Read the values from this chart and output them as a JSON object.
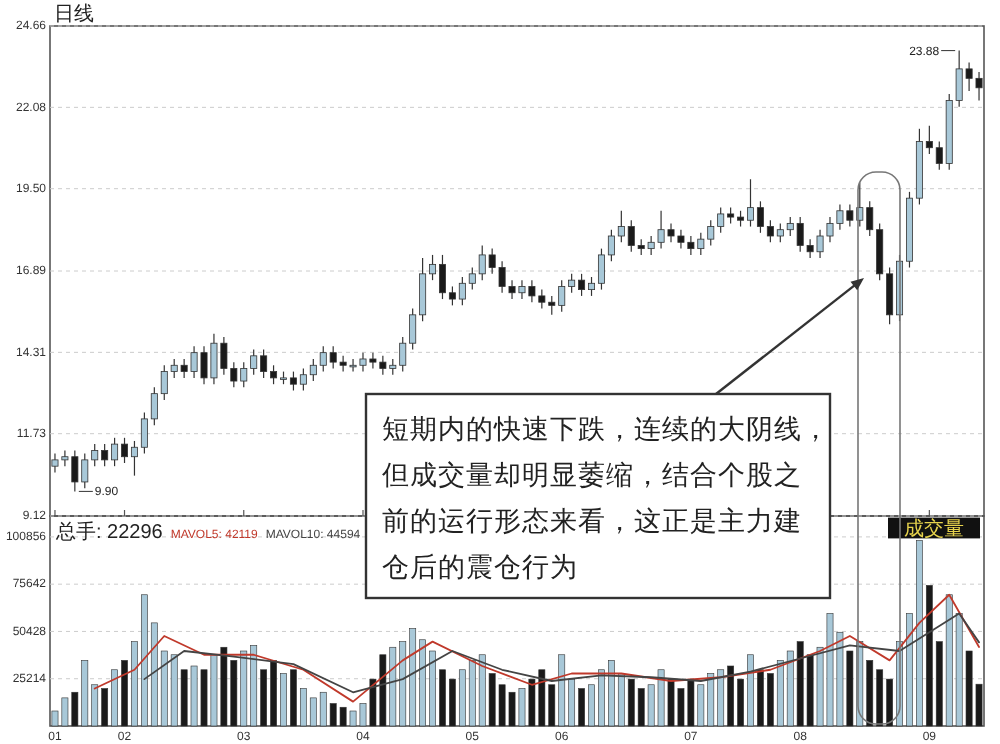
{
  "chart_data": [
    {
      "type": "candlestick",
      "title": "日线",
      "categories": [
        "01",
        null,
        null,
        null,
        null,
        null,
        null,
        "02",
        null,
        null,
        null,
        null,
        null,
        null,
        null,
        null,
        null,
        null,
        null,
        "03",
        null,
        null,
        null,
        null,
        null,
        null,
        null,
        null,
        null,
        null,
        null,
        "04",
        null,
        null,
        null,
        null,
        null,
        null,
        null,
        null,
        null,
        null,
        "05",
        null,
        null,
        null,
        null,
        null,
        null,
        null,
        null,
        "06",
        null,
        null,
        null,
        null,
        null,
        null,
        null,
        null,
        null,
        null,
        null,
        null,
        "07",
        null,
        null,
        null,
        null,
        null,
        null,
        null,
        null,
        null,
        null,
        "08",
        null,
        null,
        null,
        null,
        null,
        null,
        null,
        null,
        null,
        null,
        null,
        null,
        "09",
        null,
        null,
        null,
        null,
        null
      ],
      "ohlc": [
        [
          10.7,
          11.1,
          10.5,
          10.9
        ],
        [
          10.9,
          11.2,
          10.7,
          11.0
        ],
        [
          11.0,
          11.2,
          9.9,
          10.2
        ],
        [
          10.2,
          11.1,
          10.0,
          10.9
        ],
        [
          10.9,
          11.4,
          10.7,
          11.2
        ],
        [
          11.2,
          11.4,
          10.7,
          10.9
        ],
        [
          10.9,
          11.6,
          10.7,
          11.4
        ],
        [
          11.4,
          11.6,
          10.8,
          11.0
        ],
        [
          11.0,
          11.5,
          10.4,
          11.3
        ],
        [
          11.3,
          12.4,
          11.1,
          12.2
        ],
        [
          12.2,
          13.2,
          12.0,
          13.0
        ],
        [
          13.0,
          13.9,
          12.8,
          13.7
        ],
        [
          13.7,
          14.1,
          13.5,
          13.9
        ],
        [
          13.9,
          14.1,
          13.5,
          13.7
        ],
        [
          13.7,
          14.5,
          13.5,
          14.3
        ],
        [
          14.3,
          14.5,
          13.3,
          13.5
        ],
        [
          13.5,
          14.9,
          13.3,
          14.6
        ],
        [
          14.6,
          14.8,
          13.6,
          13.8
        ],
        [
          13.8,
          14.0,
          13.2,
          13.4
        ],
        [
          13.4,
          14.0,
          13.2,
          13.8
        ],
        [
          13.8,
          14.4,
          13.6,
          14.2
        ],
        [
          14.2,
          14.4,
          13.5,
          13.7
        ],
        [
          13.7,
          13.9,
          13.3,
          13.5
        ],
        [
          13.5,
          13.7,
          13.3,
          13.5
        ],
        [
          13.5,
          13.7,
          13.1,
          13.3
        ],
        [
          13.3,
          13.8,
          13.1,
          13.6
        ],
        [
          13.6,
          14.1,
          13.4,
          13.9
        ],
        [
          13.9,
          14.5,
          13.7,
          14.3
        ],
        [
          14.3,
          14.5,
          13.8,
          14.0
        ],
        [
          14.0,
          14.2,
          13.7,
          13.9
        ],
        [
          13.9,
          14.1,
          13.7,
          13.9
        ],
        [
          13.9,
          14.3,
          13.7,
          14.1
        ],
        [
          14.1,
          14.3,
          13.8,
          14.0
        ],
        [
          14.0,
          14.2,
          13.6,
          13.8
        ],
        [
          13.8,
          14.1,
          13.6,
          13.9
        ],
        [
          13.9,
          14.8,
          13.7,
          14.6
        ],
        [
          14.6,
          15.7,
          14.4,
          15.5
        ],
        [
          15.5,
          17.3,
          15.3,
          16.8
        ],
        [
          16.8,
          17.4,
          16.6,
          17.1
        ],
        [
          17.1,
          17.4,
          16.0,
          16.2
        ],
        [
          16.2,
          16.4,
          15.8,
          16.0
        ],
        [
          16.0,
          16.7,
          15.8,
          16.5
        ],
        [
          16.5,
          17.0,
          16.3,
          16.8
        ],
        [
          16.8,
          17.7,
          16.6,
          17.4
        ],
        [
          17.4,
          17.6,
          16.8,
          17.0
        ],
        [
          17.0,
          17.2,
          16.2,
          16.4
        ],
        [
          16.4,
          16.6,
          16.0,
          16.2
        ],
        [
          16.2,
          16.6,
          16.0,
          16.4
        ],
        [
          16.4,
          16.6,
          15.9,
          16.1
        ],
        [
          16.1,
          16.3,
          15.7,
          15.9
        ],
        [
          15.9,
          16.1,
          15.5,
          15.8
        ],
        [
          15.8,
          16.6,
          15.6,
          16.4
        ],
        [
          16.4,
          16.8,
          16.2,
          16.6
        ],
        [
          16.6,
          16.8,
          16.1,
          16.3
        ],
        [
          16.3,
          16.7,
          16.1,
          16.5
        ],
        [
          16.5,
          17.6,
          16.3,
          17.4
        ],
        [
          17.4,
          18.2,
          17.2,
          18.0
        ],
        [
          18.0,
          18.8,
          17.8,
          18.3
        ],
        [
          18.3,
          18.5,
          17.5,
          17.7
        ],
        [
          17.7,
          17.9,
          17.4,
          17.6
        ],
        [
          17.6,
          18.0,
          17.4,
          17.8
        ],
        [
          17.8,
          18.8,
          17.6,
          18.2
        ],
        [
          18.2,
          18.4,
          17.8,
          18.0
        ],
        [
          18.0,
          18.2,
          17.6,
          17.8
        ],
        [
          17.8,
          18.0,
          17.4,
          17.6
        ],
        [
          17.6,
          18.1,
          17.4,
          17.9
        ],
        [
          17.9,
          18.5,
          17.7,
          18.3
        ],
        [
          18.3,
          18.9,
          18.1,
          18.7
        ],
        [
          18.7,
          18.9,
          18.4,
          18.6
        ],
        [
          18.6,
          18.8,
          18.3,
          18.5
        ],
        [
          18.5,
          19.8,
          18.3,
          18.9
        ],
        [
          18.9,
          19.1,
          18.1,
          18.3
        ],
        [
          18.3,
          18.5,
          17.8,
          18.0
        ],
        [
          18.0,
          18.4,
          17.8,
          18.2
        ],
        [
          18.2,
          18.6,
          18.0,
          18.4
        ],
        [
          18.4,
          18.6,
          17.5,
          17.7
        ],
        [
          17.7,
          17.9,
          17.3,
          17.5
        ],
        [
          17.5,
          18.2,
          17.3,
          18.0
        ],
        [
          18.0,
          18.6,
          17.8,
          18.4
        ],
        [
          18.4,
          19.0,
          18.2,
          18.8
        ],
        [
          18.8,
          19.0,
          18.3,
          18.5
        ],
        [
          18.5,
          19.7,
          18.3,
          18.9
        ],
        [
          18.9,
          19.1,
          18.0,
          18.2
        ],
        [
          18.2,
          18.4,
          16.6,
          16.8
        ],
        [
          16.8,
          17.0,
          15.2,
          15.5
        ],
        [
          15.5,
          17.4,
          15.3,
          17.2
        ],
        [
          17.2,
          19.4,
          17.0,
          19.2
        ],
        [
          19.2,
          21.4,
          19.0,
          21.0
        ],
        [
          21.0,
          21.5,
          20.6,
          20.8
        ],
        [
          20.8,
          21.0,
          20.1,
          20.3
        ],
        [
          20.3,
          22.5,
          20.1,
          22.3
        ],
        [
          22.3,
          23.88,
          22.1,
          23.3
        ],
        [
          23.3,
          23.5,
          22.6,
          23.0
        ],
        [
          23.0,
          23.2,
          22.3,
          22.7
        ]
      ],
      "colors": [
        "#a8c8d8",
        "#a8c8d8",
        "#1a1a1a",
        "#a8c8d8",
        "#a8c8d8",
        "#1a1a1a",
        "#a8c8d8",
        "#1a1a1a",
        "#a8c8d8",
        "#a8c8d8",
        "#a8c8d8",
        "#a8c8d8",
        "#a8c8d8",
        "#1a1a1a",
        "#a8c8d8",
        "#1a1a1a",
        "#a8c8d8",
        "#1a1a1a",
        "#1a1a1a",
        "#a8c8d8",
        "#a8c8d8",
        "#1a1a1a",
        "#1a1a1a",
        "#a8c8d8",
        "#1a1a1a",
        "#a8c8d8",
        "#a8c8d8",
        "#a8c8d8",
        "#1a1a1a",
        "#1a1a1a",
        "#a8c8d8",
        "#a8c8d8",
        "#1a1a1a",
        "#1a1a1a",
        "#a8c8d8",
        "#a8c8d8",
        "#a8c8d8",
        "#a8c8d8",
        "#a8c8d8",
        "#1a1a1a",
        "#1a1a1a",
        "#a8c8d8",
        "#a8c8d8",
        "#a8c8d8",
        "#1a1a1a",
        "#1a1a1a",
        "#1a1a1a",
        "#a8c8d8",
        "#1a1a1a",
        "#1a1a1a",
        "#1a1a1a",
        "#a8c8d8",
        "#a8c8d8",
        "#1a1a1a",
        "#a8c8d8",
        "#a8c8d8",
        "#a8c8d8",
        "#a8c8d8",
        "#1a1a1a",
        "#1a1a1a",
        "#a8c8d8",
        "#a8c8d8",
        "#1a1a1a",
        "#1a1a1a",
        "#1a1a1a",
        "#a8c8d8",
        "#a8c8d8",
        "#a8c8d8",
        "#1a1a1a",
        "#1a1a1a",
        "#a8c8d8",
        "#1a1a1a",
        "#1a1a1a",
        "#a8c8d8",
        "#a8c8d8",
        "#1a1a1a",
        "#1a1a1a",
        "#a8c8d8",
        "#a8c8d8",
        "#a8c8d8",
        "#1a1a1a",
        "#a8c8d8",
        "#1a1a1a",
        "#1a1a1a",
        "#1a1a1a",
        "#a8c8d8",
        "#a8c8d8",
        "#a8c8d8",
        "#1a1a1a",
        "#1a1a1a",
        "#a8c8d8",
        "#a8c8d8",
        "#1a1a1a",
        "#1a1a1a"
      ],
      "ylim": [
        9.12,
        24.66
      ],
      "yticks": [
        9.12,
        11.73,
        14.31,
        16.89,
        {
          "value": 19.5,
          "label": "19.50"
        },
        22.08,
        24.66
      ],
      "tick_labels": "y",
      "grid": "y",
      "annotations": [
        "9.90",
        "23.88",
        "短期内的快速下跌，连续的大阴线，但成交量却明显萎缩，结合个股之前的运行形态来看，这正是主力建仓后的震仓行为"
      ]
    },
    {
      "type": "bar",
      "ylabel": "成交量",
      "categories": [
        "01",
        null,
        null,
        null,
        null,
        null,
        null,
        "02",
        null,
        null,
        null,
        null,
        null,
        null,
        null,
        null,
        null,
        null,
        null,
        "03",
        null,
        null,
        null,
        null,
        null,
        null,
        null,
        null,
        null,
        null,
        null,
        "04",
        null,
        null,
        null,
        null,
        null,
        null,
        null,
        null,
        null,
        null,
        "05",
        null,
        null,
        null,
        null,
        null,
        null,
        null,
        null,
        "06",
        null,
        null,
        null,
        null,
        null,
        null,
        null,
        null,
        null,
        null,
        null,
        null,
        "07",
        null,
        null,
        null,
        null,
        null,
        null,
        null,
        null,
        null,
        null,
        "08",
        null,
        null,
        null,
        null,
        null,
        null,
        null,
        null,
        null,
        null,
        null,
        null,
        "09",
        null,
        null,
        null,
        null,
        null
      ],
      "series": [
        {
          "values": [
            8000,
            15000,
            18000,
            35000,
            22000,
            20000,
            30000,
            35000,
            45000,
            70000,
            55000,
            40000,
            38000,
            30000,
            32000,
            30000,
            38000,
            42000,
            35000,
            40000,
            43000,
            30000,
            35000,
            28000,
            30000,
            20000,
            15000,
            18000,
            12000,
            10000,
            8000,
            12000,
            25000,
            38000,
            42000,
            45000,
            52000,
            46000,
            40000,
            30000,
            25000,
            30000,
            35000,
            38000,
            28000,
            22000,
            18000,
            20000,
            25000,
            30000,
            22000,
            38000,
            25000,
            20000,
            22000,
            30000,
            35000,
            28000,
            25000,
            20000,
            22000,
            30000,
            25000,
            20000,
            25000,
            22000,
            28000,
            30000,
            32000,
            25000,
            38000,
            30000,
            28000,
            35000,
            40000,
            45000,
            38000,
            42000,
            60000,
            50000,
            40000,
            45000,
            35000,
            30000,
            25000,
            45000,
            60000,
            99000,
            75000,
            45000,
            70000,
            60000,
            40000,
            22296
          ],
          "colors": [
            "#a8c8d8",
            "#a8c8d8",
            "#1a1a1a",
            "#a8c8d8",
            "#a8c8d8",
            "#1a1a1a",
            "#a8c8d8",
            "#1a1a1a",
            "#a8c8d8",
            "#a8c8d8",
            "#a8c8d8",
            "#a8c8d8",
            "#a8c8d8",
            "#1a1a1a",
            "#a8c8d8",
            "#1a1a1a",
            "#a8c8d8",
            "#1a1a1a",
            "#1a1a1a",
            "#a8c8d8",
            "#a8c8d8",
            "#1a1a1a",
            "#1a1a1a",
            "#a8c8d8",
            "#1a1a1a",
            "#a8c8d8",
            "#a8c8d8",
            "#a8c8d8",
            "#1a1a1a",
            "#1a1a1a",
            "#a8c8d8",
            "#a8c8d8",
            "#1a1a1a",
            "#1a1a1a",
            "#a8c8d8",
            "#a8c8d8",
            "#a8c8d8",
            "#a8c8d8",
            "#a8c8d8",
            "#1a1a1a",
            "#1a1a1a",
            "#a8c8d8",
            "#a8c8d8",
            "#a8c8d8",
            "#1a1a1a",
            "#1a1a1a",
            "#1a1a1a",
            "#a8c8d8",
            "#1a1a1a",
            "#1a1a1a",
            "#1a1a1a",
            "#a8c8d8",
            "#a8c8d8",
            "#1a1a1a",
            "#a8c8d8",
            "#a8c8d8",
            "#a8c8d8",
            "#a8c8d8",
            "#1a1a1a",
            "#1a1a1a",
            "#a8c8d8",
            "#a8c8d8",
            "#1a1a1a",
            "#1a1a1a",
            "#1a1a1a",
            "#a8c8d8",
            "#a8c8d8",
            "#a8c8d8",
            "#1a1a1a",
            "#1a1a1a",
            "#a8c8d8",
            "#1a1a1a",
            "#1a1a1a",
            "#a8c8d8",
            "#a8c8d8",
            "#1a1a1a",
            "#1a1a1a",
            "#a8c8d8",
            "#a8c8d8",
            "#a8c8d8",
            "#1a1a1a",
            "#a8c8d8",
            "#1a1a1a",
            "#1a1a1a",
            "#1a1a1a",
            "#a8c8d8",
            "#a8c8d8",
            "#a8c8d8",
            "#1a1a1a",
            "#1a1a1a",
            "#a8c8d8",
            "#a8c8d8",
            "#1a1a1a",
            "#1a1a1a"
          ]
        },
        {
          "type": "line",
          "name": "MAVOL5: 42119",
          "color": "#c0392b",
          "values": [
            null,
            null,
            null,
            null,
            20000,
            null,
            null,
            null,
            30000,
            null,
            null,
            48000,
            null,
            null,
            null,
            38000,
            null,
            null,
            null,
            null,
            38000,
            null,
            null,
            null,
            null,
            30000,
            null,
            null,
            null,
            null,
            13000,
            null,
            null,
            null,
            null,
            35000,
            null,
            null,
            45000,
            null,
            null,
            null,
            null,
            32000,
            null,
            null,
            null,
            null,
            22000,
            null,
            null,
            null,
            28000,
            null,
            null,
            null,
            null,
            28000,
            null,
            null,
            null,
            null,
            24000,
            null,
            null,
            null,
            null,
            26000,
            null,
            null,
            null,
            null,
            30000,
            null,
            null,
            null,
            null,
            40000,
            null,
            null,
            48000,
            null,
            null,
            null,
            35000,
            null,
            null,
            55000,
            null,
            null,
            70000,
            null,
            null,
            42119
          ]
        },
        {
          "type": "line",
          "name": "MAVOL10: 44594",
          "color": "#444444",
          "values": [
            null,
            null,
            null,
            null,
            null,
            null,
            null,
            null,
            null,
            25000,
            null,
            null,
            null,
            40000,
            null,
            null,
            null,
            null,
            37000,
            null,
            null,
            null,
            null,
            null,
            33000,
            null,
            null,
            null,
            null,
            null,
            18000,
            null,
            null,
            null,
            null,
            25000,
            null,
            null,
            null,
            null,
            40000,
            null,
            null,
            null,
            null,
            30000,
            null,
            null,
            null,
            null,
            24000,
            null,
            null,
            null,
            null,
            27000,
            null,
            null,
            null,
            null,
            26000,
            null,
            null,
            null,
            null,
            24000,
            null,
            null,
            null,
            null,
            29000,
            null,
            null,
            null,
            null,
            36000,
            null,
            null,
            null,
            null,
            43000,
            null,
            null,
            null,
            null,
            40000,
            null,
            null,
            50000,
            null,
            null,
            60000,
            null,
            44594
          ]
        }
      ],
      "ylim": [
        0,
        112000
      ],
      "yticks": [
        25214,
        50428,
        75642,
        100856
      ],
      "grid": "y",
      "legend": "top left",
      "annotations": [
        "总手: 22296"
      ]
    }
  ]
}
